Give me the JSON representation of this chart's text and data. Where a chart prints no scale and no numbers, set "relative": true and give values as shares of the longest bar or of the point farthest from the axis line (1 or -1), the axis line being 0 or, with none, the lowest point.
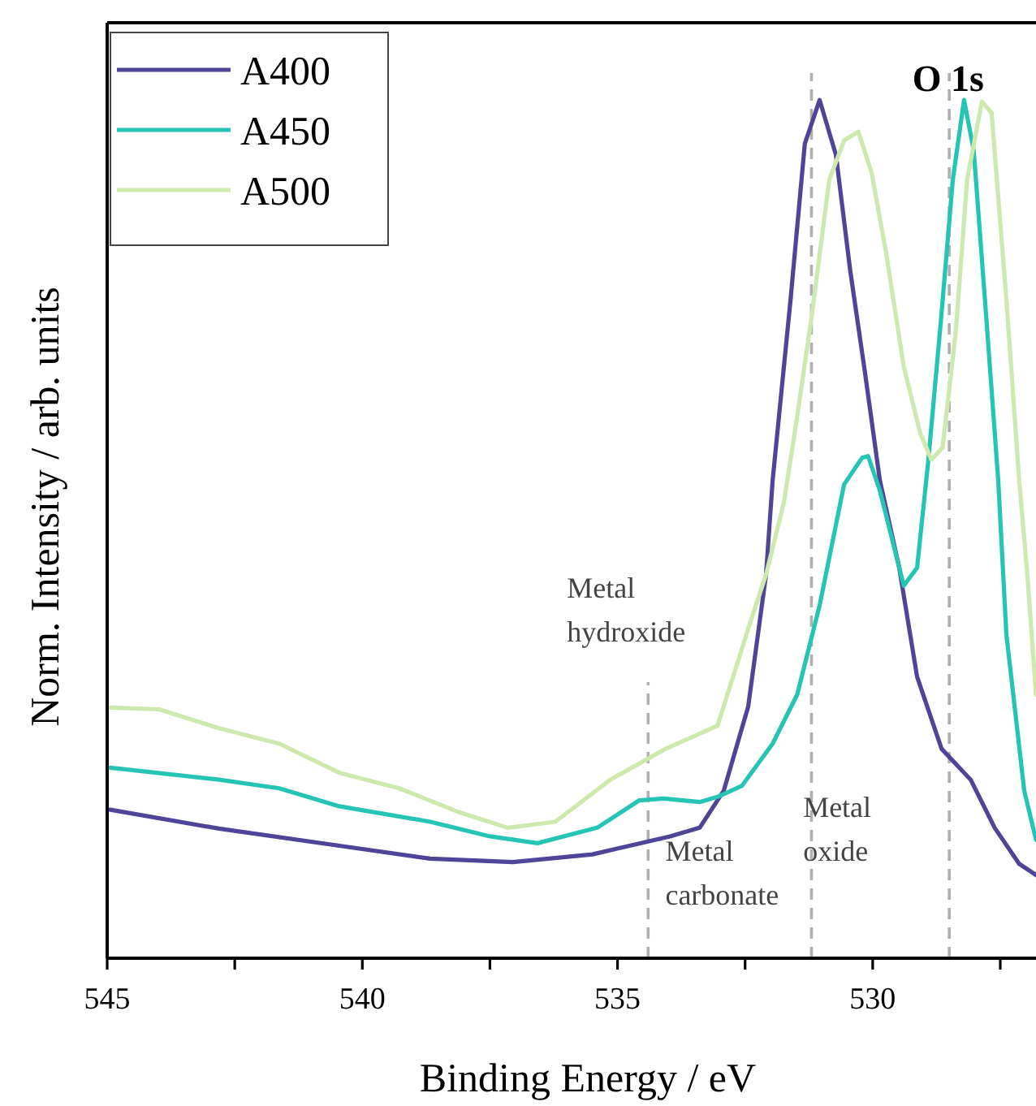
{
  "chart_data": {
    "type": "line",
    "title": "O 1s",
    "xlabel": "Binding Energy / eV",
    "ylabel": "Norm. Intensity / arb. units",
    "relative": true,
    "xlim": [
      545,
      526.8
    ],
    "xticks": [
      545,
      {
        "value": 542.5,
        "label": null
      },
      540,
      {
        "value": 537.5,
        "label": null
      },
      535,
      {
        "value": 532.5,
        "label": null
      },
      530,
      {
        "value": 527.5,
        "label": null
      }
    ],
    "legend": "top left",
    "line_style": "solid",
    "grid": false,
    "series": [
      {
        "name": "A400",
        "color": "#4f4598",
        "x": [
          544.94,
          542.81,
          540.45,
          538.67,
          537.05,
          535.49,
          533.97,
          533.39,
          532.92,
          532.44,
          532.09,
          531.96,
          531.61,
          531.33,
          531.04,
          530.72,
          530.44,
          530.15,
          529.86,
          529.48,
          529.13,
          528.65,
          528.08,
          527.61,
          527.13,
          526.8
        ],
        "values": [
          0.173,
          0.151,
          0.131,
          0.116,
          0.112,
          0.121,
          0.142,
          0.152,
          0.195,
          0.293,
          0.447,
          0.557,
          0.767,
          0.949,
          1.0,
          0.936,
          0.801,
          0.682,
          0.557,
          0.455,
          0.328,
          0.244,
          0.208,
          0.152,
          0.11,
          0.097
        ]
      },
      {
        "name": "A450",
        "color": "#26c4b4",
        "x": [
          544.94,
          542.81,
          541.63,
          540.45,
          538.67,
          537.5,
          536.57,
          535.4,
          534.57,
          534.09,
          533.39,
          533.04,
          532.56,
          531.96,
          531.48,
          531.04,
          530.56,
          530.21,
          530.09,
          529.86,
          529.39,
          529.13,
          528.91,
          528.65,
          528.43,
          528.21,
          528.02,
          527.8,
          527.54,
          527.38,
          527.03,
          526.8
        ],
        "values": [
          0.222,
          0.208,
          0.198,
          0.177,
          0.159,
          0.142,
          0.134,
          0.152,
          0.184,
          0.186,
          0.182,
          0.188,
          0.201,
          0.25,
          0.307,
          0.411,
          0.552,
          0.583,
          0.585,
          0.545,
          0.434,
          0.455,
          0.58,
          0.752,
          0.907,
          1.0,
          0.941,
          0.767,
          0.557,
          0.377,
          0.195,
          0.138
        ]
      },
      {
        "name": "A500",
        "color": "#cde9ae",
        "x": [
          544.94,
          543.98,
          542.81,
          541.63,
          540.45,
          539.28,
          538.1,
          537.15,
          536.22,
          535.14,
          534.09,
          533.04,
          532.66,
          532.44,
          532.09,
          531.74,
          531.49,
          531.2,
          530.85,
          530.56,
          530.28,
          530.02,
          529.74,
          529.39,
          529.07,
          528.85,
          528.63,
          528.37,
          528.15,
          527.86,
          527.67,
          527.38,
          527.13,
          526.97,
          526.8
        ],
        "values": [
          0.292,
          0.29,
          0.268,
          0.25,
          0.216,
          0.198,
          0.17,
          0.152,
          0.159,
          0.208,
          0.243,
          0.271,
          0.342,
          0.384,
          0.447,
          0.531,
          0.627,
          0.746,
          0.907,
          0.953,
          0.963,
          0.915,
          0.823,
          0.689,
          0.612,
          0.581,
          0.595,
          0.731,
          0.907,
          0.998,
          0.985,
          0.767,
          0.557,
          0.447,
          0.307
        ]
      }
    ],
    "ref_lines": [
      {
        "axis": "x",
        "value": 534.4,
        "label": "Metal\nhydroxide",
        "color": "#b0b0b0",
        "line_style": "dashed"
      },
      {
        "axis": "x",
        "value": 531.2,
        "label": "Metal\ncarbonate",
        "color": "#b0b0b0",
        "line_style": "dashed"
      },
      {
        "axis": "x",
        "value": 528.5,
        "label": "Metal\noxide",
        "color": "#b0b0b0",
        "line_style": "dashed"
      }
    ]
  }
}
